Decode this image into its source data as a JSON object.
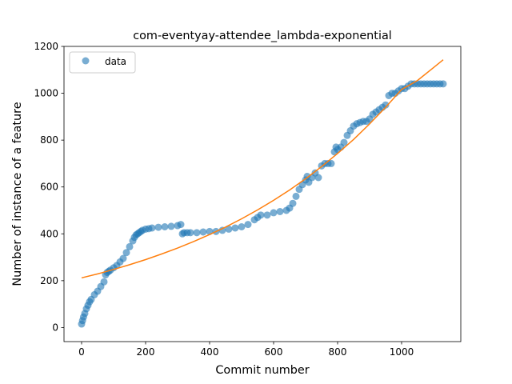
{
  "chart_data": {
    "type": "scatter",
    "title": "com-eventyay-attendee_lambda-exponential",
    "xlabel": "Commit number",
    "ylabel": "Number of instance of a feature",
    "xlim": [
      -55,
      1185
    ],
    "ylim": [
      -60,
      1200
    ],
    "xticks": [
      0,
      200,
      400,
      600,
      800,
      1000
    ],
    "yticks": [
      0,
      200,
      400,
      600,
      800,
      1000,
      1200
    ],
    "legend": {
      "position": "top-left",
      "entries": [
        "data"
      ]
    },
    "colors": {
      "data": "#1f77b4",
      "fit": "#ff7f0e"
    },
    "series": [
      {
        "name": "data",
        "kind": "scatter",
        "x": [
          0,
          3,
          6,
          10,
          15,
          20,
          25,
          30,
          40,
          50,
          60,
          70,
          75,
          80,
          85,
          90,
          100,
          110,
          120,
          130,
          140,
          150,
          160,
          165,
          170,
          175,
          180,
          185,
          190,
          200,
          210,
          220,
          240,
          260,
          280,
          300,
          310,
          315,
          320,
          330,
          340,
          360,
          380,
          400,
          420,
          440,
          460,
          480,
          500,
          520,
          540,
          550,
          560,
          580,
          600,
          620,
          640,
          650,
          660,
          670,
          680,
          690,
          700,
          705,
          710,
          720,
          730,
          740,
          750,
          760,
          770,
          780,
          790,
          795,
          800,
          810,
          820,
          830,
          840,
          850,
          860,
          870,
          880,
          890,
          900,
          910,
          920,
          930,
          940,
          950,
          960,
          970,
          980,
          990,
          1000,
          1010,
          1020,
          1030,
          1040,
          1050,
          1060,
          1070,
          1080,
          1090,
          1100,
          1110,
          1120,
          1130
        ],
        "y": [
          15,
          30,
          45,
          60,
          80,
          95,
          110,
          120,
          140,
          155,
          175,
          195,
          225,
          235,
          240,
          245,
          255,
          265,
          280,
          295,
          320,
          345,
          370,
          385,
          395,
          400,
          405,
          410,
          415,
          420,
          422,
          425,
          428,
          430,
          432,
          435,
          440,
          400,
          405,
          405,
          405,
          405,
          408,
          410,
          410,
          415,
          420,
          425,
          430,
          440,
          460,
          470,
          480,
          480,
          490,
          495,
          500,
          510,
          530,
          560,
          590,
          610,
          630,
          645,
          620,
          640,
          660,
          640,
          690,
          700,
          700,
          700,
          750,
          770,
          760,
          770,
          790,
          820,
          840,
          860,
          870,
          875,
          880,
          880,
          890,
          910,
          920,
          930,
          940,
          950,
          990,
          1000,
          1000,
          1010,
          1020,
          1020,
          1030,
          1040,
          1040,
          1040,
          1040,
          1040,
          1040,
          1040,
          1040,
          1040,
          1040,
          1040
        ]
      },
      {
        "name": "",
        "kind": "line",
        "x": [
          0,
          50,
          100,
          150,
          200,
          250,
          300,
          350,
          400,
          450,
          500,
          550,
          600,
          650,
          700,
          750,
          800,
          850,
          900,
          950,
          1000,
          1050,
          1100,
          1130
        ],
        "y": [
          212,
          229,
          248,
          268,
          290,
          314,
          339,
          367,
          397,
          429,
          464,
          502,
          543,
          587,
          635,
          687,
          743,
          803,
          869,
          940,
          1016,
          1055,
          1110,
          1143
        ]
      }
    ]
  }
}
